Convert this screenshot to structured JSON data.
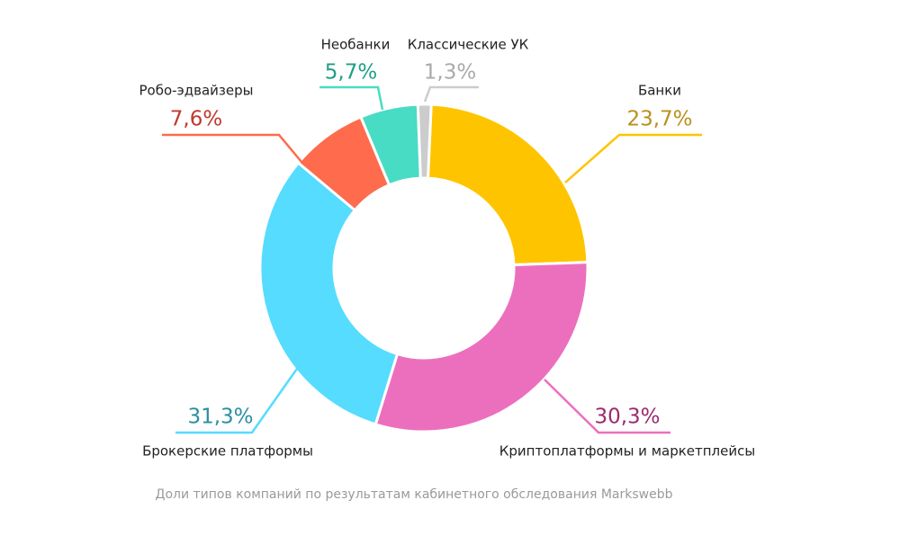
{
  "chart_data": {
    "type": "donut",
    "categories": [
      "Банки",
      "Криптоплатформы и маркетплейсы",
      "Брокерские платформы",
      "Робо-эдвайзеры",
      "Необанки",
      "Классические УК"
    ],
    "values": [
      23.7,
      30.3,
      31.3,
      7.6,
      5.7,
      1.3
    ],
    "value_labels": [
      "23,7%",
      "30,3%",
      "31,3%",
      "7,6%",
      "5,7%",
      "1,3%"
    ],
    "colors": [
      "#ffc400",
      "#ec6fbe",
      "#55dcff",
      "#ff6b4d",
      "#48dcc4",
      "#cccccc"
    ],
    "label_colors": [
      "#b8901b",
      "#9c2a6e",
      "#2a8fa0",
      "#c0392b",
      "#1f9f88",
      "#aaaaaa"
    ],
    "caption": "Доли типов компаний по результатам кабинетного обследования Markswebb"
  }
}
